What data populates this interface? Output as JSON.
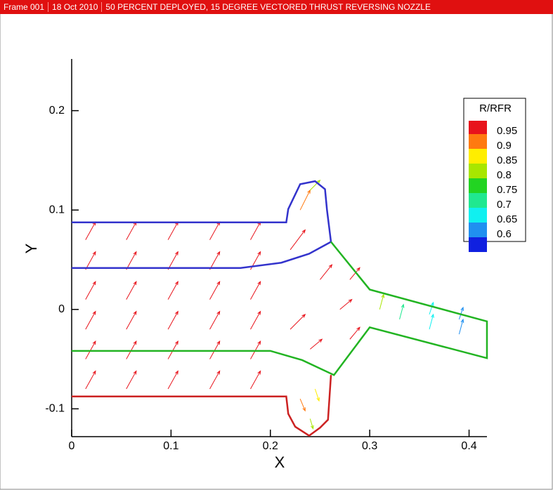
{
  "header": {
    "frame": "Frame 001",
    "date": "18 Oct 2010",
    "title": "50 PERCENT DEPLOYED, 15 DEGREE VECTORED THRUST REVERSING NOZZLE"
  },
  "chart_data": {
    "type": "vector",
    "xlabel": "X",
    "ylabel": "Y",
    "xlim": [
      0,
      0.418
    ],
    "ylim": [
      -0.128,
      0.252
    ],
    "xticks": [
      0,
      0.1,
      0.2,
      0.3,
      0.4
    ],
    "yticks": [
      -0.1,
      0,
      0.1,
      0.2
    ],
    "series": [
      {
        "color": "#3333cc",
        "x": [
          0,
          0.216,
          0.218,
          0.23,
          0.245,
          0.255,
          0.257,
          0.261
        ],
        "y": [
          0.0876,
          0.0876,
          0.101,
          0.126,
          0.129,
          0.121,
          0.1,
          0.068
        ]
      },
      {
        "color": "#3333cc",
        "x": [
          0,
          0.17,
          0.211,
          0.239,
          0.261
        ],
        "y": [
          0.0417,
          0.0417,
          0.047,
          0.056,
          0.068
        ]
      },
      {
        "color": "#22b422",
        "x": [
          0.261,
          0.3,
          0.418,
          0.418,
          0.3,
          0.264,
          0.232,
          0.2,
          0
        ],
        "y": [
          0.068,
          0.02,
          -0.012,
          -0.049,
          -0.018,
          -0.066,
          -0.051,
          -0.0417,
          -0.0417
        ]
      },
      {
        "color": "#cc2222",
        "x": [
          0,
          0.216,
          0.218,
          0.225,
          0.239,
          0.25,
          0.258,
          0.261
        ],
        "y": [
          -0.0876,
          -0.0876,
          -0.105,
          -0.118,
          -0.127,
          -0.119,
          -0.111,
          -0.066
        ]
      }
    ],
    "vectors": {
      "x": [
        0.014,
        0.014,
        0.014,
        0.014,
        0.014,
        0.014,
        0.055,
        0.055,
        0.055,
        0.055,
        0.055,
        0.055,
        0.097,
        0.097,
        0.097,
        0.097,
        0.097,
        0.097,
        0.139,
        0.139,
        0.139,
        0.139,
        0.139,
        0.139,
        0.18,
        0.18,
        0.18,
        0.18,
        0.18,
        0.18,
        0.22,
        0.23,
        0.24,
        0.25,
        0.22,
        0.24,
        0.23,
        0.24,
        0.245,
        0.27,
        0.28,
        0.28,
        0.31,
        0.33,
        0.36,
        0.39,
        0.36,
        0.39
      ],
      "y": [
        -0.08,
        -0.05,
        -0.02,
        0.01,
        0.04,
        0.07,
        -0.08,
        -0.05,
        -0.02,
        0.01,
        0.04,
        0.07,
        -0.08,
        -0.05,
        -0.02,
        0.01,
        0.04,
        0.07,
        -0.08,
        -0.05,
        -0.02,
        0.01,
        0.04,
        0.07,
        -0.08,
        -0.05,
        -0.02,
        0.01,
        0.04,
        0.07,
        0.06,
        0.1,
        0.12,
        0.03,
        -0.02,
        -0.04,
        -0.09,
        -0.11,
        -0.08,
        0,
        0.03,
        -0.03,
        0,
        -0.01,
        -0.02,
        -0.025,
        -0.005,
        -0.01
      ],
      "u": [
        0.01,
        0.01,
        0.01,
        0.01,
        0.01,
        0.01,
        0.01,
        0.01,
        0.01,
        0.01,
        0.01,
        0.01,
        0.01,
        0.01,
        0.01,
        0.01,
        0.01,
        0.01,
        0.01,
        0.01,
        0.01,
        0.01,
        0.01,
        0.01,
        0.01,
        0.01,
        0.01,
        0.01,
        0.01,
        0.01,
        0.015,
        0.01,
        0.01,
        0.012,
        0.015,
        0.012,
        0.005,
        0.003,
        0.004,
        0.012,
        0.01,
        0.01,
        0.004,
        0.004,
        0.004,
        0.004,
        0.004,
        0.004
      ],
      "v": [
        0.018,
        0.018,
        0.018,
        0.018,
        0.018,
        0.018,
        0.018,
        0.018,
        0.018,
        0.018,
        0.018,
        0.018,
        0.018,
        0.018,
        0.018,
        0.018,
        0.018,
        0.018,
        0.018,
        0.018,
        0.018,
        0.018,
        0.018,
        0.018,
        0.018,
        0.018,
        0.018,
        0.018,
        0.018,
        0.018,
        0.02,
        0.02,
        0.01,
        0.015,
        0.015,
        0.01,
        -0.012,
        -0.01,
        -0.012,
        0.01,
        0.012,
        0.012,
        0.015,
        0.015,
        0.015,
        0.015,
        0.012,
        0.012
      ],
      "r": [
        0.97,
        0.97,
        0.97,
        0.97,
        0.97,
        0.97,
        0.97,
        0.97,
        0.97,
        0.97,
        0.97,
        0.97,
        0.97,
        0.97,
        0.97,
        0.97,
        0.97,
        0.97,
        0.97,
        0.97,
        0.97,
        0.97,
        0.97,
        0.97,
        0.97,
        0.97,
        0.97,
        0.97,
        0.97,
        0.97,
        0.97,
        0.92,
        0.8,
        0.97,
        0.97,
        0.97,
        0.92,
        0.8,
        0.88,
        0.97,
        0.97,
        0.97,
        0.82,
        0.7,
        0.65,
        0.62,
        0.65,
        0.62
      ]
    },
    "legend": {
      "title": "R/RFR",
      "levels": [
        0.95,
        0.9,
        0.85,
        0.8,
        0.75,
        0.7,
        0.65,
        0.6
      ],
      "colors": [
        "#e8141c",
        "#ff7a10",
        "#ffee00",
        "#a8e600",
        "#22d422",
        "#20e890",
        "#10f0f0",
        "#2090f0",
        "#1020e0"
      ]
    }
  }
}
